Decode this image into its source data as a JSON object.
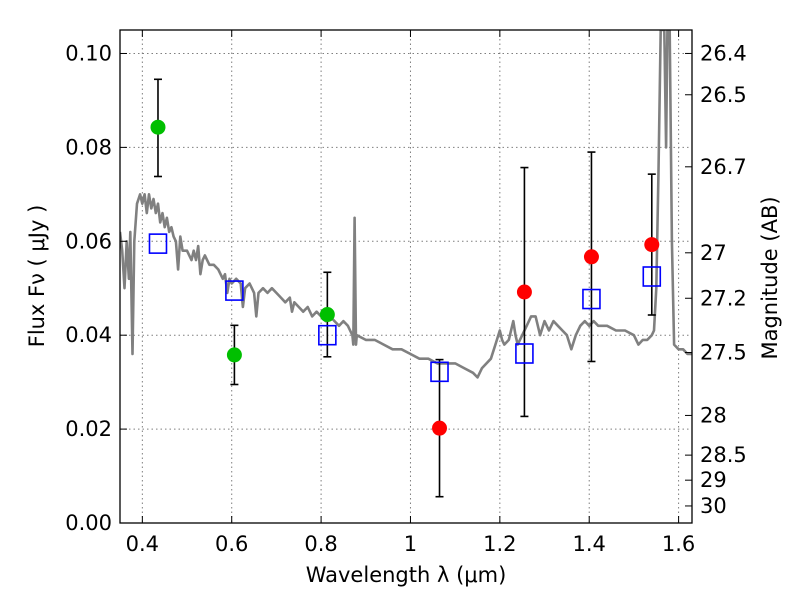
{
  "chart_data": {
    "type": "scatter",
    "title": "",
    "xlabel": "Wavelength  λ (μm)",
    "ylabel": "Flux  Fν  ( μJy )",
    "ylabel_right": "Magnitude (AB)",
    "xlim": [
      0.35,
      1.63
    ],
    "ylim": [
      0.0,
      0.105
    ],
    "grid": true,
    "legend": "none",
    "x_ticks": [
      {
        "value": 0.4,
        "label": "0.4"
      },
      {
        "value": 0.6,
        "label": "0.6"
      },
      {
        "value": 0.8,
        "label": "0.8"
      },
      {
        "value": 1.0,
        "label": "1"
      },
      {
        "value": 1.2,
        "label": "1.2"
      },
      {
        "value": 1.4,
        "label": "1.4"
      },
      {
        "value": 1.6,
        "label": "1.6"
      }
    ],
    "y_ticks": [
      {
        "value": 0.0,
        "label": "0.00"
      },
      {
        "value": 0.02,
        "label": "0.02"
      },
      {
        "value": 0.04,
        "label": "0.04"
      },
      {
        "value": 0.06,
        "label": "0.06"
      },
      {
        "value": 0.08,
        "label": "0.08"
      },
      {
        "value": 0.1,
        "label": "0.10"
      }
    ],
    "right_ticks": [
      {
        "value": 26.4,
        "label": "26.4"
      },
      {
        "value": 26.5,
        "label": "26.5"
      },
      {
        "value": 26.7,
        "label": "26.7"
      },
      {
        "value": 27.0,
        "label": "27"
      },
      {
        "value": 27.2,
        "label": "27.2"
      },
      {
        "value": 27.5,
        "label": "27.5"
      },
      {
        "value": 28.0,
        "label": "28"
      },
      {
        "value": 28.5,
        "label": "28.5"
      },
      {
        "value": 29.0,
        "label": "29"
      },
      {
        "value": 30.0,
        "label": "30"
      }
    ],
    "colors": {
      "model": "#808080",
      "green": "#00bf00",
      "red": "#ff0000",
      "square": "#0000ff",
      "errorbar": "#000000"
    },
    "series": [
      {
        "kind": "model_spectrum",
        "color": "#808080",
        "points": [
          [
            0.35,
            0.062
          ],
          [
            0.355,
            0.058
          ],
          [
            0.36,
            0.05
          ],
          [
            0.365,
            0.06
          ],
          [
            0.37,
            0.052
          ],
          [
            0.373,
            0.062
          ],
          [
            0.378,
            0.036
          ],
          [
            0.382,
            0.06
          ],
          [
            0.388,
            0.068
          ],
          [
            0.395,
            0.07
          ],
          [
            0.4,
            0.068
          ],
          [
            0.405,
            0.07
          ],
          [
            0.41,
            0.066
          ],
          [
            0.415,
            0.07
          ],
          [
            0.42,
            0.067
          ],
          [
            0.425,
            0.069
          ],
          [
            0.43,
            0.066
          ],
          [
            0.435,
            0.068
          ],
          [
            0.44,
            0.064
          ],
          [
            0.445,
            0.066
          ],
          [
            0.45,
            0.063
          ],
          [
            0.455,
            0.065
          ],
          [
            0.46,
            0.062
          ],
          [
            0.465,
            0.063
          ],
          [
            0.47,
            0.061
          ],
          [
            0.475,
            0.06
          ],
          [
            0.48,
            0.054
          ],
          [
            0.485,
            0.061
          ],
          [
            0.49,
            0.058
          ],
          [
            0.5,
            0.058
          ],
          [
            0.51,
            0.056
          ],
          [
            0.515,
            0.058
          ],
          [
            0.52,
            0.056
          ],
          [
            0.525,
            0.059
          ],
          [
            0.53,
            0.053
          ],
          [
            0.535,
            0.056
          ],
          [
            0.54,
            0.057
          ],
          [
            0.545,
            0.056
          ],
          [
            0.55,
            0.055
          ],
          [
            0.56,
            0.055
          ],
          [
            0.57,
            0.054
          ],
          [
            0.58,
            0.052
          ],
          [
            0.585,
            0.053
          ],
          [
            0.59,
            0.049
          ],
          [
            0.595,
            0.052
          ],
          [
            0.6,
            0.051
          ],
          [
            0.61,
            0.052
          ],
          [
            0.62,
            0.051
          ],
          [
            0.625,
            0.046
          ],
          [
            0.63,
            0.05
          ],
          [
            0.64,
            0.051
          ],
          [
            0.65,
            0.049
          ],
          [
            0.655,
            0.044
          ],
          [
            0.66,
            0.049
          ],
          [
            0.67,
            0.05
          ],
          [
            0.68,
            0.049
          ],
          [
            0.69,
            0.05
          ],
          [
            0.7,
            0.049
          ],
          [
            0.71,
            0.048
          ],
          [
            0.72,
            0.047
          ],
          [
            0.73,
            0.048
          ],
          [
            0.735,
            0.045
          ],
          [
            0.74,
            0.047
          ],
          [
            0.75,
            0.046
          ],
          [
            0.76,
            0.045
          ],
          [
            0.77,
            0.046
          ],
          [
            0.78,
            0.044
          ],
          [
            0.79,
            0.045
          ],
          [
            0.8,
            0.044
          ],
          [
            0.81,
            0.043
          ],
          [
            0.82,
            0.044
          ],
          [
            0.83,
            0.043
          ],
          [
            0.84,
            0.042
          ],
          [
            0.85,
            0.043
          ],
          [
            0.86,
            0.042
          ],
          [
            0.865,
            0.041
          ],
          [
            0.87,
            0.04
          ],
          [
            0.872,
            0.038
          ],
          [
            0.875,
            0.065
          ],
          [
            0.878,
            0.038
          ],
          [
            0.88,
            0.04
          ],
          [
            0.9,
            0.039
          ],
          [
            0.92,
            0.039
          ],
          [
            0.94,
            0.038
          ],
          [
            0.96,
            0.037
          ],
          [
            0.98,
            0.037
          ],
          [
            1.0,
            0.036
          ],
          [
            1.02,
            0.035
          ],
          [
            1.04,
            0.035
          ],
          [
            1.06,
            0.034
          ],
          [
            1.08,
            0.034
          ],
          [
            1.1,
            0.034
          ],
          [
            1.12,
            0.033
          ],
          [
            1.14,
            0.032
          ],
          [
            1.15,
            0.031
          ],
          [
            1.16,
            0.033
          ],
          [
            1.18,
            0.035
          ],
          [
            1.19,
            0.038
          ],
          [
            1.2,
            0.041
          ],
          [
            1.205,
            0.039
          ],
          [
            1.21,
            0.038
          ],
          [
            1.22,
            0.039
          ],
          [
            1.23,
            0.043
          ],
          [
            1.235,
            0.04
          ],
          [
            1.24,
            0.038
          ],
          [
            1.25,
            0.04
          ],
          [
            1.26,
            0.042
          ],
          [
            1.27,
            0.044
          ],
          [
            1.28,
            0.044
          ],
          [
            1.29,
            0.04
          ],
          [
            1.3,
            0.043
          ],
          [
            1.31,
            0.041
          ],
          [
            1.32,
            0.043
          ],
          [
            1.33,
            0.042
          ],
          [
            1.34,
            0.041
          ],
          [
            1.35,
            0.04
          ],
          [
            1.36,
            0.037
          ],
          [
            1.37,
            0.04
          ],
          [
            1.38,
            0.042
          ],
          [
            1.39,
            0.043
          ],
          [
            1.4,
            0.042
          ],
          [
            1.41,
            0.043
          ],
          [
            1.42,
            0.042
          ],
          [
            1.43,
            0.042
          ],
          [
            1.44,
            0.042
          ],
          [
            1.46,
            0.041
          ],
          [
            1.48,
            0.041
          ],
          [
            1.5,
            0.04
          ],
          [
            1.51,
            0.038
          ],
          [
            1.52,
            0.039
          ],
          [
            1.53,
            0.039
          ],
          [
            1.54,
            0.04
          ],
          [
            1.545,
            0.041
          ],
          [
            1.55,
            0.05
          ],
          [
            1.555,
            0.075
          ],
          [
            1.56,
            0.105
          ],
          [
            1.568,
            0.105
          ],
          [
            1.572,
            0.08
          ],
          [
            1.575,
            0.105
          ],
          [
            1.58,
            0.105
          ],
          [
            1.585,
            0.06
          ],
          [
            1.59,
            0.038
          ],
          [
            1.6,
            0.037
          ],
          [
            1.61,
            0.037
          ],
          [
            1.62,
            0.036
          ],
          [
            1.63,
            0.036
          ]
        ]
      },
      {
        "kind": "model_photometry",
        "marker": "square",
        "color": "#0000ff",
        "points": [
          [
            0.435,
            0.0595
          ],
          [
            0.606,
            0.0495
          ],
          [
            0.814,
            0.04
          ],
          [
            1.065,
            0.0322
          ],
          [
            1.255,
            0.0361
          ],
          [
            1.405,
            0.0477
          ],
          [
            1.54,
            0.0525
          ]
        ]
      },
      {
        "kind": "observed",
        "marker": "circle",
        "color": "#00bf00",
        "points": [
          {
            "x": 0.435,
            "y": 0.0843,
            "err_low": 0.0105,
            "err_high": 0.0102
          },
          {
            "x": 0.606,
            "y": 0.0358,
            "err_low": 0.0063,
            "err_high": 0.0063
          },
          {
            "x": 0.814,
            "y": 0.0444,
            "err_low": 0.009,
            "err_high": 0.009
          }
        ]
      },
      {
        "kind": "observed",
        "marker": "circle",
        "color": "#ff0000",
        "points": [
          {
            "x": 1.065,
            "y": 0.0202,
            "err_low": 0.0146,
            "err_high": 0.0146
          },
          {
            "x": 1.255,
            "y": 0.0492,
            "err_low": 0.0265,
            "err_high": 0.0265
          },
          {
            "x": 1.405,
            "y": 0.0567,
            "err_low": 0.0223,
            "err_high": 0.0223
          },
          {
            "x": 1.54,
            "y": 0.0593,
            "err_low": 0.015,
            "err_high": 0.015
          }
        ]
      }
    ]
  }
}
